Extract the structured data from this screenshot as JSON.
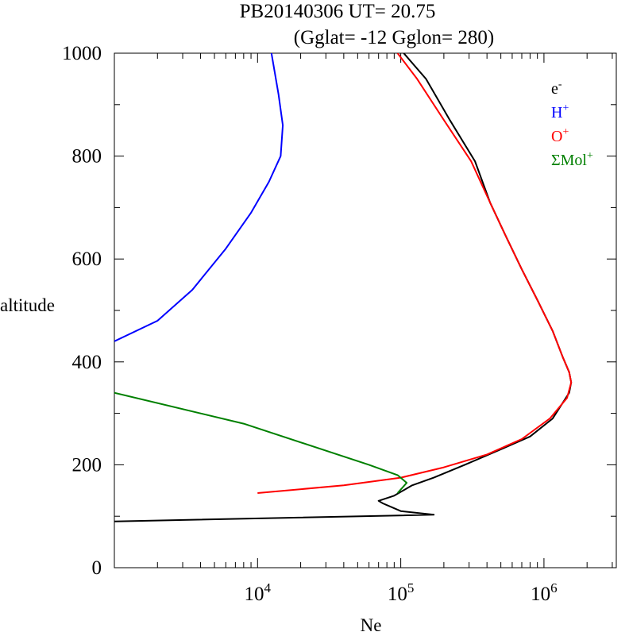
{
  "chart_data": {
    "type": "line",
    "title_line1": "PB20140306   UT=  20.75",
    "title_line2": "(Gglat= -12   Gglon=  280)",
    "xlabel": "Ne",
    "ylabel": "altitude",
    "x_scale": "log",
    "xlim": [
      1000,
      3200000
    ],
    "ylim": [
      0,
      1000
    ],
    "y_ticks": [
      0,
      200,
      400,
      600,
      800,
      1000
    ],
    "y_tick_labels": [
      "0",
      "200",
      "400",
      "600",
      "800",
      "1000"
    ],
    "x_ticks": [
      10000,
      100000,
      1000000
    ],
    "x_tick_labels": [
      {
        "base": "10",
        "exp": "4"
      },
      {
        "base": "10",
        "exp": "5"
      },
      {
        "base": "10",
        "exp": "6"
      }
    ],
    "legend_position": "top-right",
    "series": [
      {
        "name": "e-",
        "label_base": "e",
        "label_sup": "-",
        "color": "#000000",
        "points": [
          [
            1000,
            90
          ],
          [
            170000,
            103
          ],
          [
            100000,
            110
          ],
          [
            75000,
            125
          ],
          [
            70000,
            130
          ],
          [
            90000,
            140
          ],
          [
            120000,
            160
          ],
          [
            170000,
            175
          ],
          [
            280000,
            200
          ],
          [
            500000,
            230
          ],
          [
            800000,
            255
          ],
          [
            1150000,
            290
          ],
          [
            1500000,
            340
          ],
          [
            1550000,
            360
          ],
          [
            1500000,
            380
          ],
          [
            1350000,
            410
          ],
          [
            1150000,
            460
          ],
          [
            900000,
            520
          ],
          [
            700000,
            580
          ],
          [
            530000,
            650
          ],
          [
            420000,
            710
          ],
          [
            330000,
            790
          ],
          [
            220000,
            870
          ],
          [
            150000,
            950
          ],
          [
            105000,
            1000
          ]
        ]
      },
      {
        "name": "H+",
        "label_base": "H",
        "label_sup": "+",
        "color": "#0000ff",
        "points": [
          [
            1000,
            440
          ],
          [
            2000,
            480
          ],
          [
            3500,
            540
          ],
          [
            6000,
            620
          ],
          [
            9000,
            690
          ],
          [
            12000,
            750
          ],
          [
            14500,
            800
          ],
          [
            15000,
            860
          ],
          [
            14000,
            920
          ],
          [
            12500,
            1000
          ]
        ]
      },
      {
        "name": "O+",
        "label_base": "O",
        "label_sup": "+",
        "color": "#ff0000",
        "points": [
          [
            10000,
            145
          ],
          [
            40000,
            160
          ],
          [
            100000,
            175
          ],
          [
            200000,
            195
          ],
          [
            400000,
            220
          ],
          [
            700000,
            250
          ],
          [
            1100000,
            290
          ],
          [
            1450000,
            330
          ],
          [
            1550000,
            360
          ],
          [
            1500000,
            380
          ],
          [
            1350000,
            410
          ],
          [
            1150000,
            460
          ],
          [
            900000,
            520
          ],
          [
            700000,
            580
          ],
          [
            530000,
            650
          ],
          [
            420000,
            710
          ],
          [
            310000,
            790
          ],
          [
            200000,
            870
          ],
          [
            130000,
            950
          ],
          [
            95000,
            1000
          ]
        ]
      },
      {
        "name": "ΣMol+",
        "label_base": "ΣMol",
        "label_sup": "+",
        "color": "#008000",
        "points": [
          [
            1000,
            340
          ],
          [
            8000,
            280
          ],
          [
            60000,
            200
          ],
          [
            95000,
            180
          ],
          [
            110000,
            165
          ],
          [
            95000,
            145
          ]
        ]
      }
    ]
  }
}
